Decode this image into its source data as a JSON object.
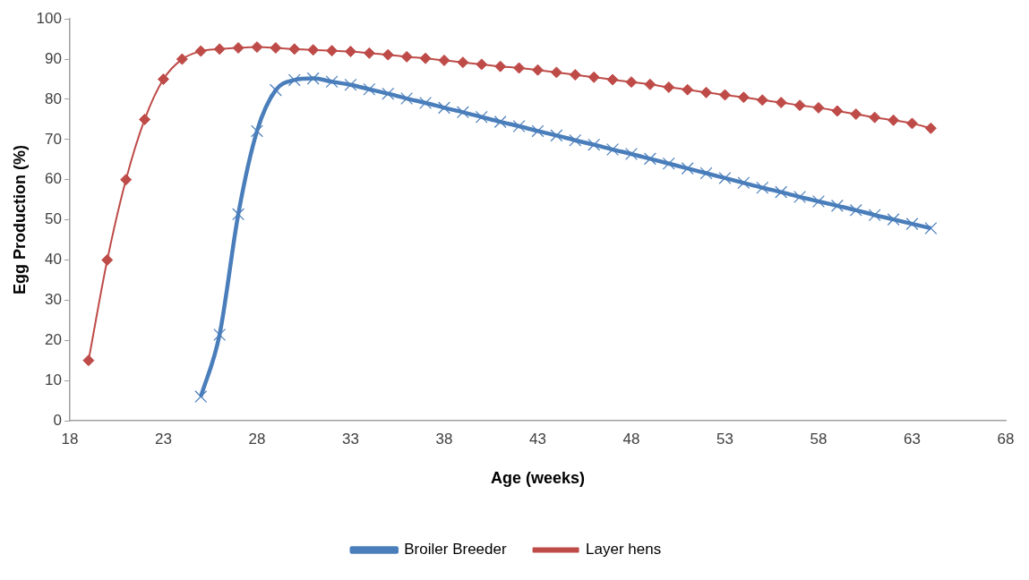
{
  "chart_data": {
    "type": "line",
    "xlabel": "Age (weeks)",
    "ylabel": "Egg Production (%)",
    "xlim": [
      18,
      68
    ],
    "xticks": [
      18,
      23,
      28,
      33,
      38,
      43,
      48,
      53,
      58,
      63,
      68
    ],
    "ylim": [
      0,
      100
    ],
    "yticks": [
      0,
      10,
      20,
      30,
      40,
      50,
      60,
      70,
      80,
      90,
      100
    ],
    "grid": false,
    "legend": "bottom",
    "series": [
      {
        "name": "Broiler Breeder",
        "color": "#4a7ebb",
        "marker": "cross",
        "x": [
          25,
          26,
          27,
          28,
          29,
          30,
          31,
          32,
          33,
          34,
          35,
          36,
          37,
          38,
          39,
          40,
          41,
          42,
          43,
          44,
          45,
          46,
          47,
          48,
          49,
          50,
          51,
          52,
          53,
          54,
          55,
          56,
          57,
          58,
          59,
          60,
          61,
          62,
          63,
          64
        ],
        "values": [
          6,
          21.4,
          51.4,
          72.1,
          82.3,
          84.8,
          85.2,
          84.4,
          83.6,
          82.5,
          81.4,
          80.2,
          79.1,
          77.9,
          76.8,
          75.6,
          74.4,
          73.3,
          72.1,
          71.0,
          69.8,
          68.7,
          67.5,
          66.4,
          65.2,
          64.0,
          62.8,
          61.6,
          60.4,
          59.2,
          58.0,
          56.9,
          55.7,
          54.6,
          53.5,
          52.4,
          51.2,
          50.1,
          49.0,
          47.9
        ]
      },
      {
        "name": "Layer hens",
        "color": "#be4b48",
        "marker": "diamond",
        "x": [
          19,
          20,
          21,
          22,
          23,
          24,
          25,
          26,
          27,
          28,
          29,
          30,
          31,
          32,
          33,
          34,
          35,
          36,
          37,
          38,
          39,
          40,
          41,
          42,
          43,
          44,
          45,
          46,
          47,
          48,
          49,
          50,
          51,
          52,
          53,
          54,
          55,
          56,
          57,
          58,
          59,
          60,
          61,
          62,
          63,
          64
        ],
        "values": [
          15,
          40,
          60,
          75,
          85,
          90,
          92,
          92.5,
          92.8,
          93,
          92.8,
          92.5,
          92.3,
          92.1,
          91.9,
          91.5,
          91.1,
          90.6,
          90.2,
          89.7,
          89.2,
          88.7,
          88.2,
          87.8,
          87.3,
          86.7,
          86.1,
          85.5,
          84.9,
          84.3,
          83.7,
          83.0,
          82.4,
          81.7,
          81.1,
          80.5,
          79.8,
          79.2,
          78.5,
          77.9,
          77.1,
          76.3,
          75.5,
          74.8,
          74.0,
          72.8
        ]
      }
    ]
  }
}
